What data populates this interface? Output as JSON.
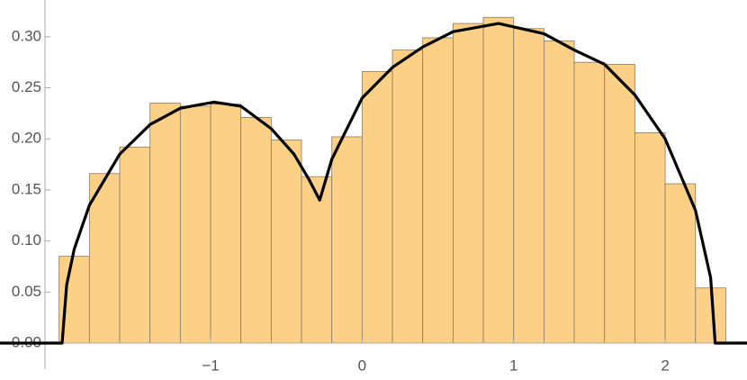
{
  "chart_data": {
    "type": "histogram",
    "bins": [
      -2.0,
      -1.8,
      -1.6,
      -1.4,
      -1.2,
      -1.0,
      -0.8,
      -0.6,
      -0.4,
      -0.2,
      0.0,
      0.2,
      0.4,
      0.6,
      0.8,
      1.0,
      1.2,
      1.4,
      1.6,
      1.8,
      2.0,
      2.2,
      2.4
    ],
    "values": [
      0.085,
      0.166,
      0.192,
      0.235,
      0.232,
      0.234,
      0.221,
      0.199,
      0.163,
      0.202,
      0.266,
      0.287,
      0.299,
      0.313,
      0.319,
      0.308,
      0.296,
      0.275,
      0.273,
      0.206,
      0.156,
      0.054
    ],
    "color": "#fdd088",
    "curve": {
      "type": "line",
      "color": "#000000",
      "x": [
        -2.39,
        -1.98,
        -1.95,
        -1.9,
        -1.8,
        -1.6,
        -1.4,
        -1.2,
        -0.98,
        -0.8,
        -0.6,
        -0.45,
        -0.35,
        -0.28,
        -0.2,
        0.0,
        0.2,
        0.4,
        0.6,
        0.9,
        1.2,
        1.4,
        1.6,
        1.8,
        2.0,
        2.2,
        2.3,
        2.33,
        2.54
      ],
      "values": [
        0,
        0,
        0.057,
        0.092,
        0.135,
        0.185,
        0.214,
        0.23,
        0.236,
        0.232,
        0.21,
        0.185,
        0.16,
        0.14,
        0.18,
        0.24,
        0.27,
        0.29,
        0.305,
        0.313,
        0.303,
        0.287,
        0.273,
        0.243,
        0.2,
        0.13,
        0.064,
        0,
        0
      ]
    },
    "xlim": [
      -2.39,
      2.54
    ],
    "ylim": [
      0,
      0.336
    ],
    "xticks": [
      {
        "value": -1,
        "label": "−1"
      },
      0,
      1,
      2
    ],
    "yticks": [
      {
        "value": 0,
        "label": "0.00"
      },
      {
        "value": 0.05,
        "label": "0.05"
      },
      {
        "value": 0.1,
        "label": "0.10"
      },
      {
        "value": 0.15,
        "label": "0.15"
      },
      {
        "value": 0.2,
        "label": "0.20"
      },
      {
        "value": 0.25,
        "label": "0.25"
      },
      {
        "value": 0.3,
        "label": "0.30"
      }
    ]
  }
}
